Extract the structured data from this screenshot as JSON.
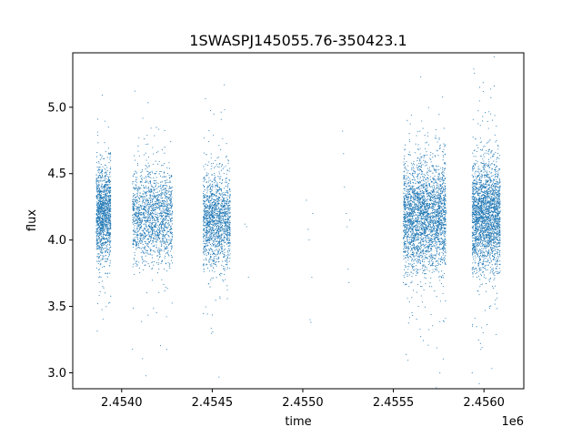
{
  "chart_data": {
    "type": "scatter",
    "title": "1SWASPJ145055.76-350423.1",
    "xlabel": "time",
    "ylabel": "flux",
    "x_offset_label": "1e6",
    "xlim": [
      2453730,
      2456220
    ],
    "ylim": [
      2.88,
      5.41
    ],
    "xticks": [
      2454000,
      2454500,
      2455000,
      2455500,
      2456000
    ],
    "xtick_labels": [
      "2.4540",
      "2.4545",
      "2.4550",
      "2.4555",
      "2.4560"
    ],
    "yticks": [
      3.0,
      3.5,
      4.0,
      4.5,
      5.0
    ],
    "ytick_labels": [
      "3.0",
      "3.5",
      "4.0",
      "4.5",
      "5.0"
    ],
    "grid": false,
    "legend": "none",
    "marker_color": "#1f77b4",
    "series": [
      {
        "values_description_note": "",
        "clusters": [
          {
            "x_range": [
              2453860,
              2453940
            ],
            "y_center": 4.2,
            "y_spread": 0.17,
            "points": 1300
          },
          {
            "x_range": [
              2454060,
              2454280
            ],
            "y_center": 4.18,
            "y_spread": 0.17,
            "points": 1600
          },
          {
            "x_range": [
              2454450,
              2454600
            ],
            "y_center": 4.15,
            "y_spread": 0.17,
            "points": 1500
          },
          {
            "x_range": [
              2455555,
              2455790
            ],
            "y_center": 4.18,
            "y_spread": 0.2,
            "points": 2800
          },
          {
            "x_range": [
              2455935,
              2456090
            ],
            "y_center": 4.18,
            "y_spread": 0.2,
            "points": 2400
          }
        ],
        "sparse": [
          [
            2454680,
            4.12
          ],
          [
            2454690,
            4.1
          ],
          [
            2454700,
            3.72
          ],
          [
            2455020,
            4.3
          ],
          [
            2455030,
            4.08
          ],
          [
            2455035,
            4.0
          ],
          [
            2455040,
            3.4
          ],
          [
            2455045,
            3.38
          ],
          [
            2455050,
            3.72
          ],
          [
            2455055,
            4.2
          ],
          [
            2455220,
            4.82
          ],
          [
            2455225,
            4.65
          ],
          [
            2455230,
            4.4
          ],
          [
            2455240,
            4.2
          ],
          [
            2455245,
            4.1
          ],
          [
            2455250,
            3.78
          ],
          [
            2455255,
            3.68
          ],
          [
            2455260,
            4.15
          ]
        ]
      }
    ]
  }
}
